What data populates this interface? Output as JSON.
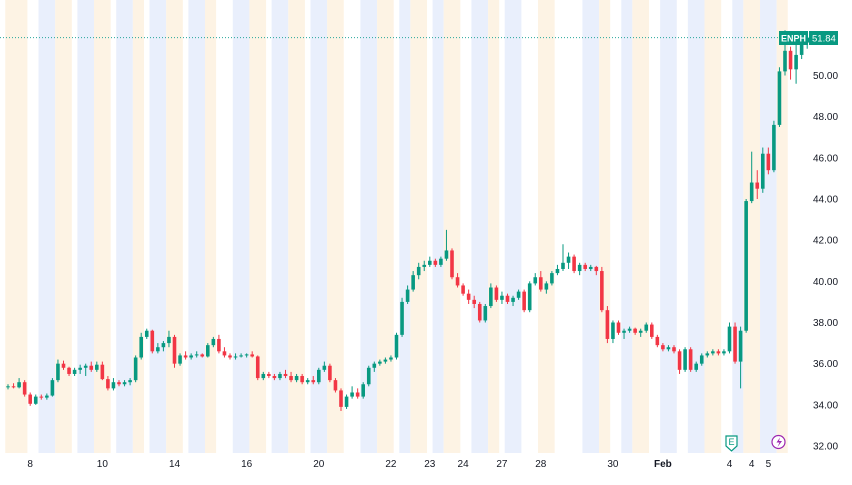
{
  "chart_data": {
    "type": "candlestick",
    "symbol": "ENPH",
    "last_price": "51.84",
    "y_ticks": [
      "32.00",
      "34.00",
      "36.00",
      "38.00",
      "40.00",
      "42.00",
      "44.00",
      "46.00",
      "48.00",
      "50.00"
    ],
    "ylim": [
      31.9,
      52.3
    ],
    "x_ticks": [
      {
        "label": "8",
        "i": 4,
        "bold": false
      },
      {
        "label": "10",
        "i": 17,
        "bold": false
      },
      {
        "label": "14",
        "i": 30,
        "bold": false
      },
      {
        "label": "16",
        "i": 43,
        "bold": false
      },
      {
        "label": "20",
        "i": 56,
        "bold": false
      },
      {
        "label": "22",
        "i": 69,
        "bold": false
      },
      {
        "label": "23",
        "i": 76,
        "bold": false
      },
      {
        "label": "24",
        "i": 82,
        "bold": false
      },
      {
        "label": "27",
        "i": 89,
        "bold": false
      },
      {
        "label": "28",
        "i": 96,
        "bold": false
      },
      {
        "label": "30",
        "i": 109,
        "bold": false
      },
      {
        "label": "Feb",
        "i": 118,
        "bold": true
      },
      {
        "label": "4",
        "i": 130,
        "bold": false
      },
      {
        "label": "4",
        "i": 134,
        "bold": false
      },
      {
        "label": "5",
        "i": 137,
        "bold": false
      }
    ],
    "session_shading": [
      {
        "s": 0,
        "e": 3,
        "c": "pre"
      },
      {
        "s": 6,
        "e": 8,
        "c": "post"
      },
      {
        "s": 9,
        "e": 11,
        "c": "pre"
      },
      {
        "s": 13,
        "e": 15,
        "c": "post"
      },
      {
        "s": 16,
        "e": 18,
        "c": "pre"
      },
      {
        "s": 20,
        "e": 22,
        "c": "post"
      },
      {
        "s": 23,
        "e": 24,
        "c": "pre"
      },
      {
        "s": 26,
        "e": 28,
        "c": "post"
      },
      {
        "s": 29,
        "e": 31,
        "c": "pre"
      },
      {
        "s": 33,
        "e": 35,
        "c": "post"
      },
      {
        "s": 36,
        "e": 37,
        "c": "pre"
      },
      {
        "s": 41,
        "e": 43,
        "c": "post"
      },
      {
        "s": 44,
        "e": 46,
        "c": "pre"
      },
      {
        "s": 48,
        "e": 50,
        "c": "post"
      },
      {
        "s": 51,
        "e": 53,
        "c": "pre"
      },
      {
        "s": 55,
        "e": 57,
        "c": "post"
      },
      {
        "s": 58,
        "e": 60,
        "c": "pre"
      },
      {
        "s": 64,
        "e": 66,
        "c": "post"
      },
      {
        "s": 67,
        "e": 69,
        "c": "pre"
      },
      {
        "s": 71,
        "e": 72,
        "c": "post"
      },
      {
        "s": 73,
        "e": 75,
        "c": "pre"
      },
      {
        "s": 77,
        "e": 78,
        "c": "post"
      },
      {
        "s": 79,
        "e": 81,
        "c": "pre"
      },
      {
        "s": 84,
        "e": 86,
        "c": "post"
      },
      {
        "s": 87,
        "e": 88,
        "c": "pre"
      },
      {
        "s": 90,
        "e": 92,
        "c": "post"
      },
      {
        "s": 96,
        "e": 98,
        "c": "pre"
      },
      {
        "s": 104,
        "e": 106,
        "c": "post"
      },
      {
        "s": 107,
        "e": 108,
        "c": "pre"
      },
      {
        "s": 111,
        "e": 112,
        "c": "post"
      },
      {
        "s": 113,
        "e": 115,
        "c": "pre"
      },
      {
        "s": 118,
        "e": 120,
        "c": "post"
      },
      {
        "s": 123,
        "e": 125,
        "c": "post"
      },
      {
        "s": 126,
        "e": 128,
        "c": "pre"
      },
      {
        "s": 131,
        "e": 132,
        "c": "post"
      },
      {
        "s": 133,
        "e": 135,
        "c": "pre"
      },
      {
        "s": 136,
        "e": 138,
        "c": "post"
      },
      {
        "s": 139,
        "e": 140,
        "c": "pre"
      }
    ],
    "candles": [
      [
        34.85,
        35.0,
        34.75,
        34.9
      ],
      [
        34.9,
        35.05,
        34.8,
        34.85
      ],
      [
        34.85,
        35.3,
        34.8,
        35.1
      ],
      [
        35.1,
        35.2,
        34.4,
        34.5
      ],
      [
        34.5,
        34.6,
        33.95,
        34.05
      ],
      [
        34.05,
        34.5,
        34.0,
        34.4
      ],
      [
        34.4,
        34.5,
        34.25,
        34.35
      ],
      [
        34.35,
        34.55,
        34.25,
        34.45
      ],
      [
        34.45,
        35.3,
        34.4,
        35.2
      ],
      [
        35.2,
        36.2,
        35.1,
        36.0
      ],
      [
        36.0,
        36.15,
        35.7,
        35.8
      ],
      [
        35.8,
        35.85,
        35.4,
        35.5
      ],
      [
        35.5,
        35.8,
        35.4,
        35.7
      ],
      [
        35.7,
        35.95,
        35.5,
        35.8
      ],
      [
        35.8,
        36.0,
        35.4,
        35.9
      ],
      [
        35.9,
        36.1,
        35.6,
        35.7
      ],
      [
        35.7,
        36.1,
        35.6,
        35.95
      ],
      [
        35.95,
        36.1,
        35.2,
        35.25
      ],
      [
        35.25,
        35.4,
        34.7,
        34.8
      ],
      [
        34.8,
        35.3,
        34.7,
        35.1
      ],
      [
        35.1,
        35.2,
        34.9,
        35.0
      ],
      [
        35.0,
        35.2,
        34.9,
        35.1
      ],
      [
        35.1,
        35.3,
        34.95,
        35.2
      ],
      [
        35.2,
        36.4,
        35.1,
        36.3
      ],
      [
        36.3,
        37.5,
        36.2,
        37.3
      ],
      [
        37.3,
        37.7,
        37.2,
        37.6
      ],
      [
        37.6,
        37.65,
        36.5,
        36.6
      ],
      [
        36.6,
        37.0,
        36.5,
        36.8
      ],
      [
        36.8,
        37.1,
        36.6,
        37.0
      ],
      [
        37.0,
        37.6,
        36.8,
        37.3
      ],
      [
        37.3,
        37.4,
        35.8,
        36.0
      ],
      [
        36.0,
        36.5,
        35.9,
        36.4
      ],
      [
        36.4,
        36.6,
        36.2,
        36.3
      ],
      [
        36.3,
        36.5,
        36.2,
        36.4
      ],
      [
        36.4,
        36.6,
        36.3,
        36.45
      ],
      [
        36.45,
        36.5,
        36.3,
        36.35
      ],
      [
        36.35,
        37.0,
        36.3,
        36.9
      ],
      [
        36.9,
        37.3,
        36.8,
        37.2
      ],
      [
        37.2,
        37.4,
        36.5,
        36.6
      ],
      [
        36.6,
        36.8,
        36.3,
        36.4
      ],
      [
        36.4,
        36.5,
        36.2,
        36.3
      ],
      [
        36.3,
        36.5,
        36.2,
        36.35
      ],
      [
        36.35,
        36.5,
        36.3,
        36.4
      ],
      [
        36.4,
        36.5,
        36.3,
        36.45
      ],
      [
        36.45,
        36.6,
        36.3,
        36.35
      ],
      [
        36.35,
        36.4,
        35.2,
        35.3
      ],
      [
        35.3,
        35.6,
        35.2,
        35.5
      ],
      [
        35.5,
        35.6,
        35.3,
        35.4
      ],
      [
        35.4,
        35.5,
        35.2,
        35.3
      ],
      [
        35.3,
        35.6,
        35.2,
        35.5
      ],
      [
        35.5,
        35.7,
        35.3,
        35.4
      ],
      [
        35.4,
        35.6,
        35.1,
        35.2
      ],
      [
        35.2,
        35.5,
        35.1,
        35.4
      ],
      [
        35.4,
        35.5,
        35.0,
        35.1
      ],
      [
        35.1,
        35.3,
        35.0,
        35.2
      ],
      [
        35.2,
        35.4,
        35.0,
        35.1
      ],
      [
        35.1,
        35.8,
        35.0,
        35.7
      ],
      [
        35.7,
        36.1,
        35.6,
        35.9
      ],
      [
        35.9,
        36.0,
        35.1,
        35.2
      ],
      [
        35.2,
        35.3,
        34.6,
        34.7
      ],
      [
        34.7,
        34.8,
        33.7,
        33.9
      ],
      [
        33.9,
        34.5,
        33.8,
        34.4
      ],
      [
        34.4,
        34.9,
        34.3,
        34.6
      ],
      [
        34.6,
        34.8,
        34.3,
        34.4
      ],
      [
        34.4,
        35.1,
        34.3,
        35.0
      ],
      [
        35.0,
        35.9,
        34.9,
        35.8
      ],
      [
        35.8,
        36.1,
        35.6,
        36.0
      ],
      [
        36.0,
        36.2,
        35.9,
        36.1
      ],
      [
        36.1,
        36.3,
        36.0,
        36.2
      ],
      [
        36.2,
        36.4,
        36.1,
        36.3
      ],
      [
        36.3,
        37.5,
        36.2,
        37.4
      ],
      [
        37.4,
        39.2,
        37.3,
        39.0
      ],
      [
        39.0,
        39.8,
        38.9,
        39.6
      ],
      [
        39.6,
        40.5,
        39.5,
        40.3
      ],
      [
        40.3,
        40.9,
        40.1,
        40.7
      ],
      [
        40.7,
        41.0,
        40.5,
        40.8
      ],
      [
        40.8,
        41.2,
        40.7,
        41.0
      ],
      [
        41.0,
        41.1,
        40.7,
        40.8
      ],
      [
        40.8,
        41.2,
        40.7,
        41.1
      ],
      [
        41.1,
        42.5,
        41.0,
        41.5
      ],
      [
        41.5,
        41.6,
        40.1,
        40.2
      ],
      [
        40.2,
        40.4,
        39.7,
        39.8
      ],
      [
        39.8,
        39.9,
        39.3,
        39.4
      ],
      [
        39.4,
        39.6,
        38.9,
        39.1
      ],
      [
        39.1,
        39.3,
        38.7,
        38.9
      ],
      [
        38.9,
        39.0,
        38.0,
        38.1
      ],
      [
        38.1,
        38.9,
        38.0,
        38.8
      ],
      [
        38.8,
        39.9,
        38.7,
        39.7
      ],
      [
        39.7,
        39.8,
        39.0,
        39.1
      ],
      [
        39.1,
        39.5,
        38.9,
        39.3
      ],
      [
        39.3,
        39.4,
        38.9,
        39.0
      ],
      [
        39.0,
        39.3,
        38.8,
        39.2
      ],
      [
        39.2,
        39.6,
        39.1,
        39.5
      ],
      [
        39.5,
        39.6,
        38.5,
        38.6
      ],
      [
        38.6,
        40.0,
        38.5,
        39.9
      ],
      [
        39.9,
        40.4,
        39.8,
        40.2
      ],
      [
        40.2,
        40.5,
        39.5,
        39.6
      ],
      [
        39.6,
        40.0,
        39.4,
        39.9
      ],
      [
        39.9,
        40.5,
        39.8,
        40.4
      ],
      [
        40.4,
        40.8,
        40.3,
        40.6
      ],
      [
        40.6,
        41.8,
        40.5,
        40.9
      ],
      [
        40.9,
        41.4,
        40.6,
        41.2
      ],
      [
        41.2,
        41.3,
        40.4,
        40.5
      ],
      [
        40.5,
        40.9,
        40.3,
        40.8
      ],
      [
        40.8,
        40.9,
        40.5,
        40.6
      ],
      [
        40.6,
        40.8,
        40.5,
        40.7
      ],
      [
        40.7,
        40.75,
        40.3,
        40.5
      ],
      [
        40.5,
        40.7,
        38.5,
        38.6
      ],
      [
        38.6,
        38.8,
        37.0,
        37.2
      ],
      [
        37.2,
        38.1,
        37.0,
        38.0
      ],
      [
        38.0,
        38.1,
        37.4,
        37.5
      ],
      [
        37.5,
        37.7,
        37.2,
        37.6
      ],
      [
        37.6,
        37.8,
        37.5,
        37.7
      ],
      [
        37.7,
        37.75,
        37.4,
        37.5
      ],
      [
        37.5,
        37.7,
        37.3,
        37.6
      ],
      [
        37.6,
        38.0,
        37.5,
        37.9
      ],
      [
        37.9,
        38.0,
        37.2,
        37.3
      ],
      [
        37.3,
        37.4,
        36.8,
        36.9
      ],
      [
        36.9,
        37.0,
        36.6,
        36.7
      ],
      [
        36.7,
        36.9,
        36.6,
        36.8
      ],
      [
        36.8,
        36.9,
        36.5,
        36.6
      ],
      [
        36.6,
        36.7,
        35.5,
        35.7
      ],
      [
        35.7,
        36.8,
        35.6,
        36.7
      ],
      [
        36.7,
        36.8,
        35.6,
        35.7
      ],
      [
        35.7,
        36.1,
        35.6,
        36.0
      ],
      [
        36.0,
        36.5,
        35.9,
        36.4
      ],
      [
        36.4,
        36.6,
        36.3,
        36.5
      ],
      [
        36.5,
        36.7,
        36.4,
        36.6
      ],
      [
        36.6,
        36.7,
        36.4,
        36.5
      ],
      [
        36.5,
        36.7,
        36.4,
        36.6
      ],
      [
        36.6,
        38.0,
        36.5,
        37.8
      ],
      [
        37.8,
        38.0,
        36.0,
        36.1
      ],
      [
        36.1,
        37.8,
        34.8,
        37.6
      ],
      [
        37.6,
        44.0,
        37.5,
        43.9
      ],
      [
        43.9,
        46.3,
        43.8,
        44.8
      ],
      [
        44.8,
        45.4,
        44.0,
        44.5
      ],
      [
        44.5,
        46.5,
        44.3,
        46.2
      ],
      [
        46.2,
        46.5,
        45.2,
        45.4
      ],
      [
        45.4,
        47.8,
        45.3,
        47.6
      ],
      [
        47.6,
        50.4,
        47.5,
        50.2
      ],
      [
        50.2,
        52.2,
        50.0,
        51.2
      ],
      [
        51.2,
        51.4,
        49.8,
        50.3
      ],
      [
        50.3,
        51.5,
        49.6,
        51.0
      ],
      [
        51.0,
        51.9,
        50.8,
        51.6
      ],
      [
        51.6,
        52.0,
        51.3,
        51.84
      ]
    ]
  },
  "badge": {
    "symbol": "ENPH",
    "price": "51.84"
  },
  "colors": {
    "up": "#089981",
    "down": "#f23645",
    "pre": "#fdf3e4",
    "post": "#e9effc",
    "grid": "#f0f3fa",
    "price_line": "#26a69a"
  },
  "markers": {
    "earnings_letter": "E"
  },
  "icons": {
    "earnings": "earnings-e-icon",
    "dividend": "dividend-lightning-icon"
  }
}
